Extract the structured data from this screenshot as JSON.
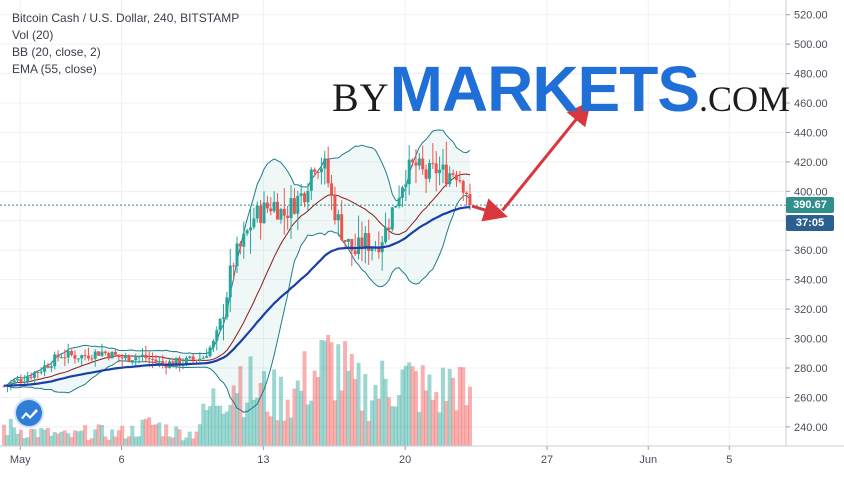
{
  "legend": {
    "title": "Bitcoin Cash / U.S. Dollar, 240, BITSTAMP",
    "vol": "Vol (20)",
    "bb": "BB (20, close, 2)",
    "ema": "EMA (55, close)"
  },
  "brand": {
    "by": "BY",
    "markets": "MARKETS",
    "com": ".COM"
  },
  "price_tags": {
    "last_price": "390.67",
    "countdown": "37:05"
  },
  "icons": {
    "tradingview_logo": "tradingview-cloud-icon",
    "arrow": "red-arrow-icon"
  },
  "colors": {
    "up": "#26a69a",
    "down": "#ef5350",
    "bb_band": "#1e7b8b",
    "bb_basis": "#8b1a1a",
    "ema": "#1a3fa6",
    "arrow": "#d9363e",
    "price_tag": "#2f8f8b",
    "countdown_tag": "#2a5f8f"
  },
  "chart_data": {
    "type": "candlestick",
    "title": "Bitcoin Cash / U.S. Dollar, 240, BITSTAMP",
    "interval": "240",
    "exchange": "BITSTAMP",
    "y_axis": {
      "position": "right",
      "ticks": [
        "520.00",
        "500.00",
        "480.00",
        "460.00",
        "440.00",
        "420.00",
        "400.00",
        "380.00",
        "360.00",
        "340.00",
        "320.00",
        "300.00",
        "280.00",
        "260.00",
        "240.00"
      ],
      "ylim": [
        227,
        530
      ]
    },
    "x_axis": {
      "ticks": [
        {
          "label": "May",
          "day": 1
        },
        {
          "label": "6",
          "day": 6
        },
        {
          "label": "13",
          "day": 13
        },
        {
          "label": "20",
          "day": 20
        },
        {
          "label": "27",
          "day": 27
        },
        {
          "label": "Jun",
          "day": 32
        },
        {
          "label": "5",
          "day": 36
        }
      ],
      "xlim": [
        0,
        38.8
      ]
    },
    "grid": true,
    "last_price": 390.67,
    "countdown": "37:05",
    "series": [
      {
        "name": "Vol (20)",
        "kind": "volume"
      },
      {
        "name": "BB (20, close, 2)",
        "kind": "bands"
      },
      {
        "name": "EMA (55, close)",
        "kind": "line"
      }
    ],
    "points": [
      {
        "day": 0.2,
        "close": 268
      },
      {
        "day": 1,
        "close": 272
      },
      {
        "day": 2,
        "close": 279
      },
      {
        "day": 3,
        "close": 289
      },
      {
        "day": 4,
        "close": 288
      },
      {
        "day": 5,
        "close": 291
      },
      {
        "day": 6,
        "close": 287
      },
      {
        "day": 7,
        "close": 288
      },
      {
        "day": 8,
        "close": 283
      },
      {
        "day": 9,
        "close": 284
      },
      {
        "day": 10,
        "close": 287
      },
      {
        "day": 10.6,
        "close": 298
      },
      {
        "day": 11,
        "close": 318
      },
      {
        "day": 11.5,
        "close": 352
      },
      {
        "day": 12,
        "close": 365
      },
      {
        "day": 12.5,
        "close": 382
      },
      {
        "day": 13,
        "close": 387
      },
      {
        "day": 13.5,
        "close": 392
      },
      {
        "day": 14,
        "close": 384
      },
      {
        "day": 14.5,
        "close": 392
      },
      {
        "day": 15,
        "close": 399
      },
      {
        "day": 15.5,
        "close": 420
      },
      {
        "day": 16,
        "close": 418
      },
      {
        "day": 16.5,
        "close": 388
      },
      {
        "day": 17,
        "close": 368
      },
      {
        "day": 17.5,
        "close": 358
      },
      {
        "day": 18,
        "close": 366
      },
      {
        "day": 18.5,
        "close": 363
      },
      {
        "day": 19,
        "close": 372
      },
      {
        "day": 19.5,
        "close": 392
      },
      {
        "day": 20,
        "close": 412
      },
      {
        "day": 20.5,
        "close": 418
      },
      {
        "day": 21,
        "close": 410
      },
      {
        "day": 21.5,
        "close": 415
      },
      {
        "day": 22,
        "close": 412
      },
      {
        "day": 22.5,
        "close": 414
      },
      {
        "day": 23,
        "close": 403
      },
      {
        "day": 23.2,
        "close": 390.67
      }
    ],
    "volume_levels": [
      {
        "day": 0.5,
        "level": 0.15
      },
      {
        "day": 1.5,
        "level": 0.12
      },
      {
        "day": 2.5,
        "level": 0.1
      },
      {
        "day": 3.5,
        "level": 0.08
      },
      {
        "day": 4.5,
        "level": 0.12
      },
      {
        "day": 5.5,
        "level": 0.1
      },
      {
        "day": 6.5,
        "level": 0.12
      },
      {
        "day": 7.5,
        "level": 0.18
      },
      {
        "day": 8.5,
        "level": 0.12
      },
      {
        "day": 9.5,
        "level": 0.1
      },
      {
        "day": 10.5,
        "level": 0.35
      },
      {
        "day": 11.2,
        "level": 0.5
      },
      {
        "day": 11.8,
        "level": 0.6
      },
      {
        "day": 12.5,
        "level": 0.45
      },
      {
        "day": 13.5,
        "level": 0.4
      },
      {
        "day": 14.5,
        "level": 0.42
      },
      {
        "day": 15.5,
        "level": 0.6
      },
      {
        "day": 16.5,
        "level": 0.7
      },
      {
        "day": 17.5,
        "level": 0.45
      },
      {
        "day": 18.5,
        "level": 0.45
      },
      {
        "day": 19.5,
        "level": 0.55
      },
      {
        "day": 20.5,
        "level": 0.5
      },
      {
        "day": 21.5,
        "level": 0.4
      },
      {
        "day": 22.5,
        "level": 0.55
      },
      {
        "day": 23.1,
        "level": 0.35
      }
    ],
    "annotation_arrows": [
      {
        "from": {
          "day": 23.3,
          "price": 390
        },
        "to": {
          "day": 24.5,
          "price": 385
        }
      },
      {
        "from": {
          "day": 24.8,
          "price": 387
        },
        "to": {
          "day": 28.8,
          "price": 455
        }
      }
    ]
  }
}
